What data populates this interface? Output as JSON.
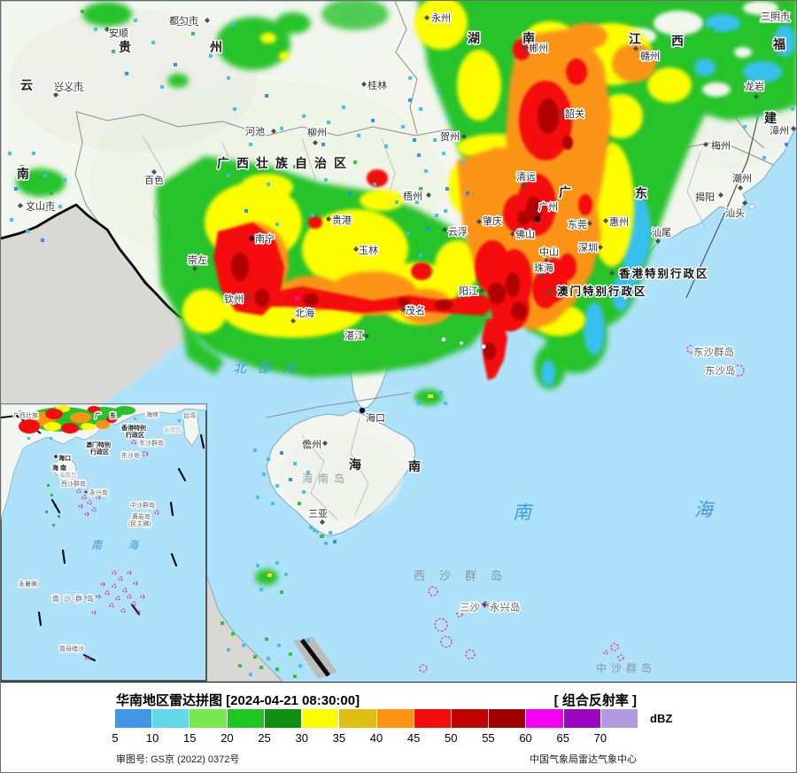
{
  "map": {
    "provinces": {
      "yunnan_1": "云",
      "yunnan_2": "南",
      "guizhou_1": "贵",
      "guizhou_2": "州",
      "guangxi": "广西壮族自治区",
      "hunan_1": "湖",
      "hunan_2": "南",
      "jiangxi_1": "江",
      "jiangxi_2": "西",
      "fujian_1": "福",
      "fujian_2": "建",
      "guangdong_1": "广",
      "guangdong_2": "东",
      "hainan_1": "海",
      "hainan_2": "南"
    },
    "cities": [
      "安顺",
      "都匀市",
      "兴义市",
      "文山市",
      "百色",
      "河池",
      "柳州",
      "桂林",
      "贺州",
      "永州",
      "郴州",
      "赣州",
      "三明市",
      "龙岩",
      "漳州",
      "梅州",
      "潮州",
      "揭阳",
      "汕头",
      "汕尾",
      "惠州",
      "韶关",
      "清远",
      "广州",
      "肇庆",
      "云浮",
      "梧州",
      "贵港",
      "玉林",
      "南宁",
      "崇左",
      "钦州",
      "北海",
      "湛江",
      "茂名",
      "阳江",
      "佛山",
      "东莞",
      "深圳",
      "中山",
      "珠海",
      "海口",
      "儋州",
      "三亚"
    ],
    "sar": {
      "hongkong": "香港特别行政区",
      "macau": "澳门特别行政区"
    },
    "seas": {
      "beibu_gulf": "北部湾",
      "south_sea_1": "南",
      "south_sea_2": "海",
      "xisha": "西沙群岛",
      "zhongsha": "中沙群岛",
      "hainan_island": "海南岛",
      "dongsha_islands": "东沙群岛",
      "dongsha_island": "东沙岛",
      "sansha": "三沙",
      "yongxing_island": "永兴岛"
    }
  },
  "inset": {
    "labels": [
      "广西壮族",
      "广 东",
      "海峡",
      "台湾",
      "台湾岛",
      "香港特别",
      "行政区",
      "澳门特别",
      "行政区",
      "东沙群岛",
      "东沙岛",
      "海口",
      "海 南",
      "海南岛",
      "西沙群岛",
      "永兴岛",
      "中沙群岛",
      "黄岩岛",
      "(民主礁)",
      "南",
      "海",
      "永暑礁",
      "南沙群岛",
      "曾母暗沙"
    ]
  },
  "legend": {
    "title": "华南地区雷达拼图 [2024-04-21 08:30:00]",
    "product_label": "[ 组合反射率 ]",
    "unit": "dBZ",
    "ticks": [
      "5",
      "10",
      "15",
      "20",
      "25",
      "30",
      "35",
      "40",
      "45",
      "50",
      "55",
      "60",
      "65",
      "70"
    ],
    "colors": [
      "#4197e5",
      "#63d8e8",
      "#76e94e",
      "#1ec622",
      "#108e10",
      "#fdfd00",
      "#dfbd12",
      "#fb9412",
      "#f50d0d",
      "#c10101",
      "#a00000",
      "#f400f3",
      "#9a06c1",
      "#b29ae2"
    ],
    "approval": "审图号: GS京 (2022) 0372号",
    "source": "中国气象局雷达气象中心"
  },
  "base_colors": {
    "sea": "#aee2fb",
    "land": "#f3f5ef",
    "foreign_land": "#d8d8d5",
    "border": "#0a0a0a"
  }
}
